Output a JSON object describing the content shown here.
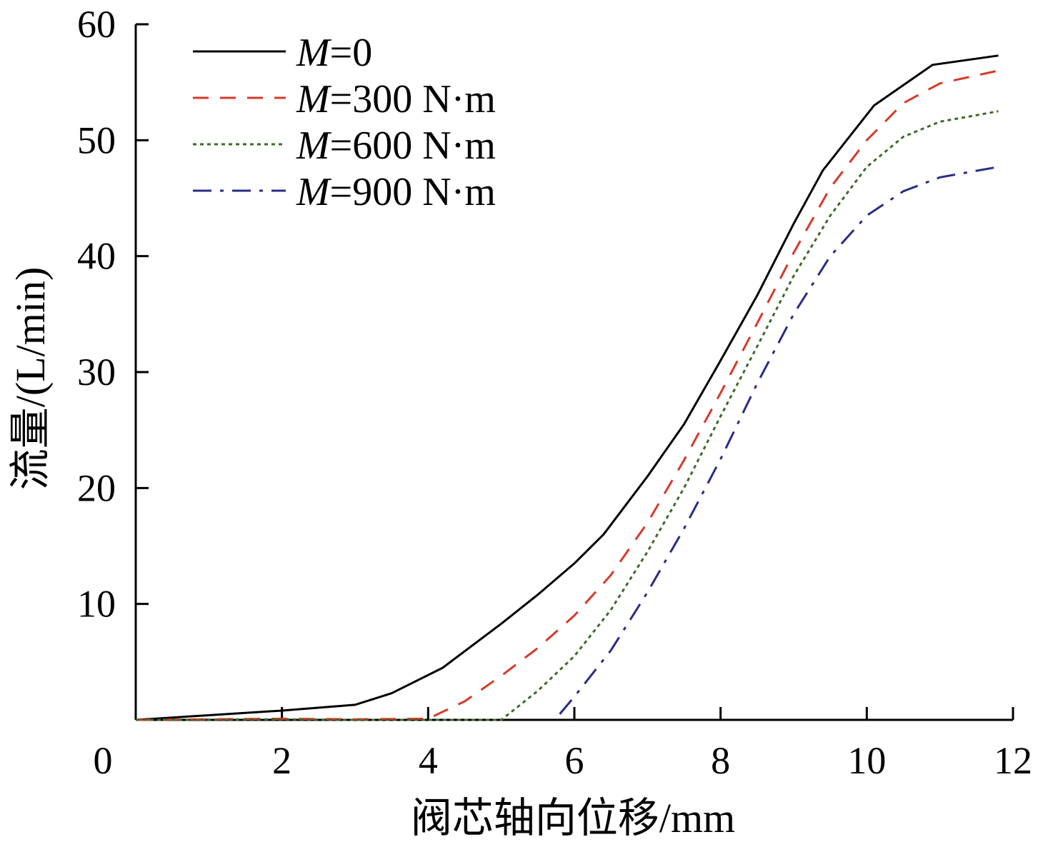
{
  "chart_data": {
    "type": "line",
    "title": "",
    "xlabel": "阀芯轴向位移/mm",
    "ylabel": "流量/(L/min)",
    "xlim": [
      0,
      12
    ],
    "ylim": [
      0,
      60
    ],
    "xticks": [
      "0",
      "2",
      "4",
      "6",
      "8",
      "10",
      "12"
    ],
    "yticks": [
      "10",
      "20",
      "30",
      "40",
      "50",
      "60"
    ],
    "grid": false,
    "legend_position": "top-left",
    "series": [
      {
        "name_prefix": "M",
        "name_suffix": "=0",
        "name": "M=0",
        "color": "#000000",
        "dash": "solid",
        "x": [
          0,
          1,
          2,
          3,
          3.5,
          4.2,
          5,
          5.5,
          6,
          6.4,
          7,
          7.5,
          8,
          8.5,
          9,
          9.4,
          10.1,
          10.9,
          11.8
        ],
        "y": [
          0,
          0.4,
          0.8,
          1.3,
          2.3,
          4.5,
          8.3,
          10.8,
          13.5,
          16,
          21,
          25.5,
          31,
          36.6,
          42.8,
          47.4,
          53,
          56.5,
          57.3
        ]
      },
      {
        "name_prefix": "M",
        "name_suffix": "=300 N·m",
        "name": "M=300 N·m",
        "color": "#d53a2a",
        "dash": "dashed",
        "x": [
          0,
          2,
          3,
          4,
          4.5,
          5,
          5.5,
          6,
          6.5,
          7,
          7.5,
          8,
          8.5,
          9,
          9.5,
          10,
          10.5,
          11,
          11.8
        ],
        "y": [
          0,
          0.1,
          0.05,
          0.1,
          1.6,
          3.8,
          6.2,
          9,
          12.5,
          17,
          22.4,
          28.2,
          34.2,
          40.3,
          45.9,
          50,
          53.2,
          54.9,
          56
        ]
      },
      {
        "name_prefix": "M",
        "name_suffix": "=600 N·m",
        "name": "M=600 N·m",
        "color": "#3f6a27",
        "dash": "dotted",
        "x": [
          0,
          2,
          3,
          4,
          5,
          5.5,
          6,
          6.5,
          7,
          7.5,
          8,
          8.5,
          9,
          9.5,
          10,
          10.5,
          11,
          11.8
        ],
        "y": [
          0,
          0.05,
          0,
          0,
          0,
          2.5,
          5.5,
          9.5,
          14.5,
          20,
          26.2,
          32.2,
          38.3,
          43.5,
          47.7,
          50.3,
          51.6,
          52.5
        ]
      },
      {
        "name_prefix": "M",
        "name_suffix": "=900 N·m",
        "name": "M=900 N·m",
        "color": "#2b2c87",
        "dash": "dashdot",
        "x": [
          5.8,
          6,
          6.5,
          7,
          7.5,
          8,
          8.5,
          9,
          9.5,
          10,
          10.5,
          11,
          11.8
        ],
        "y": [
          0.5,
          2,
          6,
          11,
          16.5,
          22.5,
          29,
          35,
          40,
          43.5,
          45.6,
          46.8,
          47.7
        ]
      }
    ]
  }
}
